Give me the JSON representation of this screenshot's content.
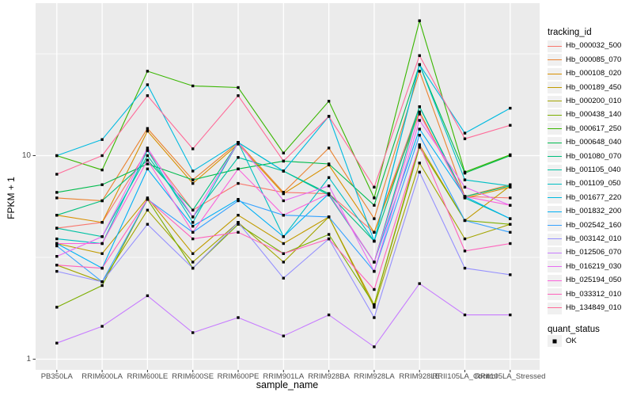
{
  "figure": {
    "bg": "#FFFFFF",
    "panel_bg": "#EBEBEB",
    "grid_color": "#FFFFFF",
    "axis_text_color": "#4D4D4D",
    "tick_mark_color": "#333333",
    "point_color": "#000000"
  },
  "y_axis": {
    "title": "FPKM + 1"
  },
  "x_axis": {
    "title": "sample_name"
  },
  "legend": {
    "tracking_title": "tracking_id",
    "quant_title": "quant_status",
    "quant_items": [
      {
        "label": "OK",
        "marker": "black-square"
      }
    ]
  },
  "chart_data": {
    "type": "line",
    "title": "",
    "xlabel": "sample_name",
    "ylabel": "FPKM + 1",
    "y_scale": "log10",
    "ylim": [
      0.84,
      60
    ],
    "y_major_ticks": [
      {
        "value": 10,
        "label": "10"
      },
      {
        "value": 1,
        "label": "1"
      }
    ],
    "y_minor_ticks": [
      31.62,
      3.162
    ],
    "grid": true,
    "point_marker": "square",
    "legend_position": "right",
    "categories": [
      "PB350LA",
      "RRIM600LA",
      "RRIM600LE",
      "RRIM600SE",
      "RRIM600PE",
      "RRIM901LA",
      "RRIM928BA",
      "RRIM928LA",
      "RRIM928LE",
      "RRII105LA_Control",
      "RRII105LA_Stressed"
    ],
    "series": [
      {
        "name": "Hb_000032_500",
        "color": "#F8766D",
        "values": [
          4.4,
          4.7,
          10.6,
          5.4,
          7.3,
          6.6,
          6.5,
          4.2,
          17.4,
          6.3,
          6.2
        ]
      },
      {
        "name": "Hb_000085_070",
        "color": "#EA8331",
        "values": [
          6.2,
          6.0,
          13.6,
          7.6,
          11.6,
          6.6,
          10.9,
          4.9,
          26.0,
          6.3,
          7.2
        ]
      },
      {
        "name": "Hb_000108_020",
        "color": "#D89000",
        "values": [
          5.1,
          4.7,
          13.2,
          7.3,
          11.4,
          6.5,
          9.0,
          4.2,
          16.4,
          6.2,
          7.0
        ]
      },
      {
        "name": "Hb_000189_450",
        "color": "#C09B00",
        "values": [
          3.7,
          3.3,
          6.2,
          3.3,
          5.1,
          3.7,
          5.0,
          1.85,
          11.3,
          4.8,
          7.1
        ]
      },
      {
        "name": "Hb_000200_010",
        "color": "#A3A500",
        "values": [
          2.9,
          2.4,
          5.4,
          3.0,
          4.7,
          3.0,
          5.0,
          1.8,
          9.2,
          3.9,
          4.6
        ]
      },
      {
        "name": "Hb_000438_140",
        "color": "#7CAE00",
        "values": [
          1.8,
          2.3,
          6.1,
          2.8,
          4.6,
          3.3,
          4.1,
          1.85,
          11.0,
          4.8,
          4.6
        ]
      },
      {
        "name": "Hb_000617_250",
        "color": "#39B600",
        "values": [
          10.0,
          8.5,
          26.0,
          22.0,
          21.6,
          10.3,
          18.5,
          6.2,
          46.0,
          8.3,
          10.1
        ]
      },
      {
        "name": "Hb_000648_040",
        "color": "#00BB4E",
        "values": [
          6.6,
          7.2,
          9.1,
          7.6,
          8.6,
          9.4,
          9.1,
          5.7,
          28.0,
          8.2,
          10.0
        ]
      },
      {
        "name": "Hb_001080_070",
        "color": "#00BF7D",
        "values": [
          5.1,
          6.0,
          9.5,
          5.4,
          11.6,
          8.4,
          6.5,
          3.8,
          17.4,
          6.3,
          7.1
        ]
      },
      {
        "name": "Hb_001105_040",
        "color": "#00C1A3",
        "values": [
          4.4,
          4.0,
          10.0,
          5.0,
          9.8,
          8.4,
          6.4,
          3.0,
          17.4,
          6.2,
          4.9
        ]
      },
      {
        "name": "Hb_001109_050",
        "color": "#00BFC4",
        "values": [
          3.9,
          3.7,
          10.6,
          4.7,
          11.6,
          4.0,
          7.8,
          3.8,
          28.0,
          7.6,
          7.1
        ]
      },
      {
        "name": "Hb_001677_220",
        "color": "#00BAE0",
        "values": [
          10.0,
          12.0,
          22.3,
          8.4,
          11.6,
          8.4,
          15.6,
          3.8,
          28.0,
          12.9,
          17.1
        ]
      },
      {
        "name": "Hb_001832_200",
        "color": "#00B0F6",
        "values": [
          3.7,
          2.8,
          8.6,
          4.5,
          6.1,
          4.0,
          6.5,
          3.0,
          13.5,
          6.3,
          4.9
        ]
      },
      {
        "name": "Hb_002542_160",
        "color": "#35A2FF",
        "values": [
          3.6,
          2.4,
          6.1,
          4.2,
          6.0,
          5.1,
          5.0,
          2.7,
          12.6,
          4.8,
          4.2
        ]
      },
      {
        "name": "Hb_003142_010",
        "color": "#9590FF",
        "values": [
          2.7,
          2.4,
          4.6,
          2.8,
          4.7,
          2.5,
          3.9,
          1.6,
          8.3,
          2.8,
          2.6
        ]
      },
      {
        "name": "Hb_012506_070",
        "color": "#C77CFF",
        "values": [
          1.2,
          1.45,
          2.05,
          1.35,
          1.6,
          1.3,
          1.65,
          1.15,
          2.35,
          1.65,
          1.65
        ]
      },
      {
        "name": "Hb_016219_030",
        "color": "#E76BF3",
        "values": [
          3.2,
          4.0,
          10.9,
          5.0,
          11.6,
          6.0,
          7.1,
          2.7,
          14.9,
          7.0,
          5.7
        ]
      },
      {
        "name": "Hb_025194_050",
        "color": "#FA62DB",
        "values": [
          3.7,
          3.7,
          9.5,
          4.2,
          8.6,
          5.1,
          6.5,
          3.0,
          16.0,
          6.3,
          5.7
        ]
      },
      {
        "name": "Hb_033312_010",
        "color": "#FF62BC",
        "values": [
          2.9,
          2.8,
          6.1,
          3.9,
          4.2,
          3.3,
          3.9,
          2.2,
          11.3,
          3.4,
          3.7
        ]
      },
      {
        "name": "Hb_134849_010",
        "color": "#FF6A98",
        "values": [
          8.1,
          10.0,
          19.7,
          10.8,
          19.7,
          9.4,
          15.6,
          7.0,
          31.0,
          12.1,
          14.1
        ]
      }
    ]
  }
}
